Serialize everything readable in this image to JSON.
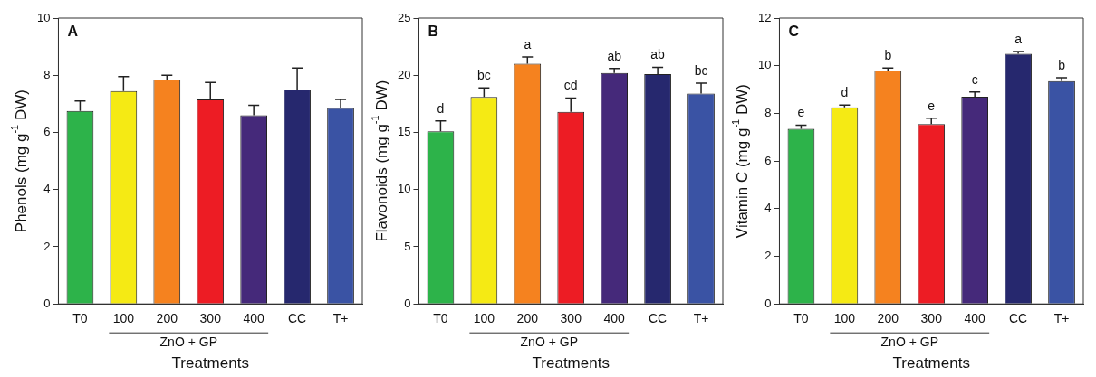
{
  "chart_data": [
    {
      "type": "bar",
      "title": "A",
      "xlabel": "Treatments",
      "ylabel": "Phenols (mg g$^{-1}$ DW)",
      "categories": [
        "T0",
        "100",
        "200",
        "300",
        "400",
        "CC",
        "T+"
      ],
      "values": [
        6.75,
        7.45,
        7.85,
        7.15,
        6.6,
        7.5,
        6.85
      ],
      "errors": [
        0.35,
        0.5,
        0.15,
        0.6,
        0.35,
        0.75,
        0.3
      ],
      "colors": [
        "#2db34a",
        "#f5ea14",
        "#f5821f",
        "#ed1c24",
        "#45297a",
        "#26286e",
        "#3a53a4"
      ],
      "ylim": [
        0,
        10
      ],
      "yticks": [
        0,
        2,
        4,
        6,
        8,
        10
      ],
      "grid": false,
      "annotations": [
        "ZnO + GP"
      ]
    },
    {
      "type": "bar",
      "title": "B",
      "xlabel": "Treatments",
      "ylabel": "Flavonoids (mg g$^{-1}$ DW)",
      "categories": [
        "T0",
        "100",
        "200",
        "300",
        "400",
        "CC",
        "T+"
      ],
      "values": [
        15.1,
        18.1,
        21.0,
        16.8,
        20.2,
        20.1,
        18.4
      ],
      "errors": [
        0.9,
        0.8,
        0.6,
        1.2,
        0.4,
        0.6,
        0.9
      ],
      "colors": [
        "#2db34a",
        "#f5ea14",
        "#f5821f",
        "#ed1c24",
        "#45297a",
        "#26286e",
        "#3a53a4"
      ],
      "ylim": [
        0,
        25
      ],
      "yticks": [
        0,
        5,
        10,
        15,
        20,
        25
      ],
      "grid": false,
      "annotations": [
        "ZnO + GP",
        {
          "text": "d",
          "x": "T0",
          "y": 16.0
        },
        {
          "text": "bc",
          "x": "100",
          "y": 18.9
        },
        {
          "text": "a",
          "x": "200",
          "y": 21.6
        },
        {
          "text": "cd",
          "x": "300",
          "y": 18.0
        },
        {
          "text": "ab",
          "x": "400",
          "y": 20.6
        },
        {
          "text": "ab",
          "x": "CC",
          "y": 20.7
        },
        {
          "text": "bc",
          "x": "T+",
          "y": 19.3
        }
      ]
    },
    {
      "type": "bar",
      "title": "C",
      "xlabel": "Treatments",
      "ylabel": "Vitamin C (mg g$^{-1}$ DW)",
      "categories": [
        "T0",
        "100",
        "200",
        "300",
        "400",
        "CC",
        "T+"
      ],
      "values": [
        7.35,
        8.25,
        9.8,
        7.55,
        8.7,
        10.5,
        9.35
      ],
      "errors": [
        0.15,
        0.1,
        0.1,
        0.25,
        0.2,
        0.1,
        0.15
      ],
      "colors": [
        "#2db34a",
        "#f5ea14",
        "#f5821f",
        "#ed1c24",
        "#45297a",
        "#26286e",
        "#3a53a4"
      ],
      "ylim": [
        0,
        12
      ],
      "yticks": [
        0,
        2,
        4,
        6,
        8,
        10,
        12
      ],
      "grid": false,
      "annotations": [
        "ZnO + GP",
        {
          "text": "e",
          "x": "T0",
          "y": 7.5
        },
        {
          "text": "d",
          "x": "100",
          "y": 8.35
        },
        {
          "text": "b",
          "x": "200",
          "y": 9.9
        },
        {
          "text": "e",
          "x": "300",
          "y": 7.8
        },
        {
          "text": "c",
          "x": "400",
          "y": 8.9
        },
        {
          "text": "a",
          "x": "CC",
          "y": 10.6
        },
        {
          "text": "b",
          "x": "T+",
          "y": 9.5
        }
      ]
    }
  ]
}
